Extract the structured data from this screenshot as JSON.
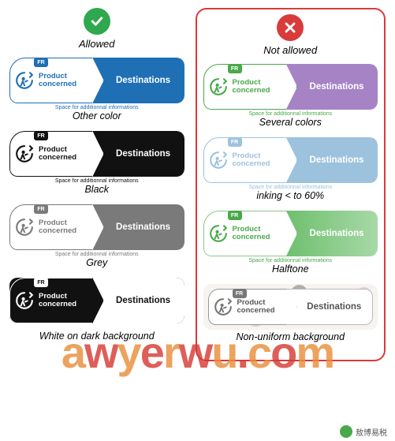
{
  "allowed": {
    "status_label": "Allowed",
    "status_color": "#2fa84f",
    "samples": [
      {
        "caption": "Other color",
        "left_text": "Product\nconcerned",
        "right_text": "Destinations",
        "subinfo": "Space for additionnal informations",
        "fr": "FR",
        "accent": "#1e6fb4",
        "left_bg": "#ffffff",
        "left_text_color": "#1e6fb4",
        "left_border": "#1e6fb4",
        "right_bg": "#1e6fb4",
        "right_text_color": "#ffffff",
        "fr_bg": "#1e6fb4",
        "fr_text": "#ffffff",
        "icon_color": "#1e6fb4",
        "card_outer_bg": "#ffffff",
        "sub_color": "#1e6fb4"
      },
      {
        "caption": "Black",
        "left_text": "Product\nconcerned",
        "right_text": "Destinations",
        "subinfo": "Space for additionnal informations",
        "fr": "FR",
        "accent": "#111111",
        "left_bg": "#ffffff",
        "left_text_color": "#111111",
        "left_border": "#111111",
        "right_bg": "#111111",
        "right_text_color": "#ffffff",
        "fr_bg": "#111111",
        "fr_text": "#ffffff",
        "icon_color": "#111111",
        "card_outer_bg": "#ffffff",
        "sub_color": "#111111"
      },
      {
        "caption": "Grey",
        "left_text": "Product\nconcerned",
        "right_text": "Destinations",
        "subinfo": "Space for additionnal informations",
        "fr": "FR",
        "accent": "#7a7a7a",
        "left_bg": "#ffffff",
        "left_text_color": "#7a7a7a",
        "left_border": "#7a7a7a",
        "right_bg": "#7a7a7a",
        "right_text_color": "#ffffff",
        "fr_bg": "#7a7a7a",
        "fr_text": "#ffffff",
        "icon_color": "#7a7a7a",
        "card_outer_bg": "#ffffff",
        "sub_color": "#7a7a7a"
      },
      {
        "caption": "White on dark background",
        "left_text": "Product\nconcerned",
        "right_text": "Destinations",
        "subinfo": "Space for additionnal informations",
        "fr": "FR",
        "accent": "#ffffff",
        "left_bg": "#111111",
        "left_text_color": "#ffffff",
        "left_border": "#ffffff",
        "right_bg": "#ffffff",
        "right_text_color": "#111111",
        "fr_bg": "#ffffff",
        "fr_text": "#111111",
        "icon_color": "#ffffff",
        "card_outer_bg": "#111111",
        "sub_color": "#ffffff"
      }
    ]
  },
  "not_allowed": {
    "status_label": "Not allowed",
    "status_color": "#d93a3a",
    "border_color": "#d93a3a",
    "samples": [
      {
        "caption": "Several colors",
        "left_text": "Product\nconcerned",
        "right_text": "Destinations",
        "subinfo": "Space for additionnal informations",
        "fr": "FR",
        "accent": "#4aa84a",
        "left_bg": "#ffffff",
        "left_text_color": "#4aa84a",
        "left_border": "#4aa84a",
        "right_bg": "#a583c5",
        "right_text_color": "#ffffff",
        "fr_bg": "#4aa84a",
        "fr_text": "#ffffff",
        "icon_color": "#4aa84a",
        "card_outer_bg": "#ffffff",
        "sub_color": "#4aa84a"
      },
      {
        "caption": "inking < to 60%",
        "left_text": "Product\nconcerned",
        "right_text": "Destinations",
        "subinfo": "Space for additionnal informations",
        "fr": "FR",
        "accent": "#9cc2dd",
        "left_bg": "#ffffff",
        "left_text_color": "#9cc2dd",
        "left_border": "#9cc2dd",
        "right_bg": "#9cc2dd",
        "right_text_color": "#ffffff",
        "fr_bg": "#9cc2dd",
        "fr_text": "#ffffff",
        "icon_color": "#9cc2dd",
        "card_outer_bg": "#ffffff",
        "sub_color": "#9cc2dd"
      },
      {
        "caption": "Halftone",
        "left_text": "Product\nconcerned",
        "right_text": "Destinations",
        "subinfo": "Space for additionnal informations",
        "fr": "FR",
        "accent": "#4aa84a",
        "left_bg": "#ffffff",
        "left_text_color": "#4aa84a",
        "left_border": "#8cc78c",
        "right_bg": "#6fbf6f",
        "right_text_color": "#ffffff",
        "fr_bg": "#4aa84a",
        "fr_text": "#ffffff",
        "icon_color": "#4aa84a",
        "card_outer_bg": "#ffffff",
        "sub_color": "#4aa84a",
        "halftone": true
      },
      {
        "caption": "Non-uniform background",
        "left_text": "Product\nconcerned",
        "right_text": "Destinations",
        "subinfo": "",
        "fr": "FR",
        "accent": "#555555",
        "left_bg": "#ffffff",
        "left_text_color": "#555555",
        "left_border": "#999999",
        "right_bg": "#ffffff",
        "right_text_color": "#555555",
        "fr_bg": "#777777",
        "fr_text": "#ffffff",
        "icon_color": "#777777",
        "card_outer_bg": "transparent",
        "sub_color": "#555555",
        "nonuniform": true
      }
    ]
  },
  "watermark": "awyerwu.com",
  "footer": "敖博易税"
}
